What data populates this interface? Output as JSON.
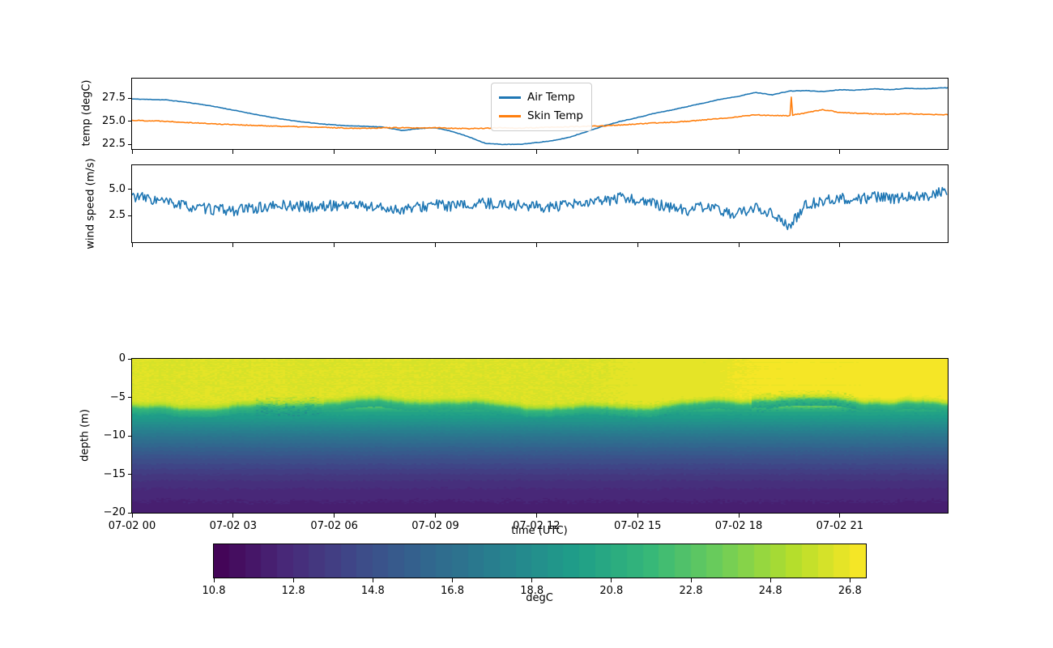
{
  "figure": {
    "background": "#ffffff"
  },
  "time_axis": {
    "lim_hours": [
      0,
      24.2
    ],
    "xlabel": "time (UTC)",
    "ticks": [
      {
        "t": 0,
        "label": "07-02 00"
      },
      {
        "t": 3,
        "label": "07-02 03"
      },
      {
        "t": 6,
        "label": "07-02 06"
      },
      {
        "t": 9,
        "label": "07-02 09"
      },
      {
        "t": 12,
        "label": "07-02 12"
      },
      {
        "t": 15,
        "label": "07-02 15"
      },
      {
        "t": 18,
        "label": "07-02 18"
      },
      {
        "t": 21,
        "label": "07-02 21"
      }
    ]
  },
  "panels": {
    "temp": {
      "ylabel": "temp (degC)",
      "ylim": [
        22.0,
        29.6
      ],
      "yticks": [
        {
          "v": 27.5,
          "label": "27.5"
        },
        {
          "v": 25.0,
          "label": "25.0"
        },
        {
          "v": 22.5,
          "label": "22.5"
        }
      ],
      "legend": [
        {
          "label": "Air Temp",
          "color": "#1f77b4"
        },
        {
          "label": "Skin Temp",
          "color": "#ff7f0e"
        }
      ]
    },
    "wind": {
      "ylabel": "wind speed (m/s)",
      "ylim": [
        0,
        7.3
      ],
      "yticks": [
        {
          "v": 5.0,
          "label": "5.0"
        },
        {
          "v": 2.5,
          "label": "2.5"
        }
      ]
    },
    "depth": {
      "ylabel": "depth (m)",
      "ylim": [
        -20,
        0
      ],
      "yticks": [
        {
          "v": 0,
          "label": "0"
        },
        {
          "v": -5,
          "label": "−5"
        },
        {
          "v": -10,
          "label": "−10"
        },
        {
          "v": -15,
          "label": "−15"
        },
        {
          "v": -20,
          "label": "−20"
        }
      ]
    }
  },
  "colorbar": {
    "label": "degC",
    "lim": [
      10.8,
      27.2
    ],
    "level_step": 0.4,
    "ticks": [
      {
        "v": 10.8,
        "label": "10.8"
      },
      {
        "v": 12.8,
        "label": "12.8"
      },
      {
        "v": 14.8,
        "label": "14.8"
      },
      {
        "v": 16.8,
        "label": "16.8"
      },
      {
        "v": 18.8,
        "label": "18.8"
      },
      {
        "v": 20.8,
        "label": "20.8"
      },
      {
        "v": 22.8,
        "label": "22.8"
      },
      {
        "v": 24.8,
        "label": "24.8"
      },
      {
        "v": 26.8,
        "label": "26.8"
      }
    ]
  },
  "chart_data": [
    {
      "type": "line",
      "name": "Air Temp",
      "units": "degC",
      "color": "#1f77b4",
      "t_start_hours": 0,
      "t_step_hours": 0.5,
      "values": [
        27.4,
        27.35,
        27.3,
        27.1,
        26.85,
        26.55,
        26.2,
        25.85,
        25.5,
        25.2,
        24.95,
        24.75,
        24.6,
        24.5,
        24.45,
        24.35,
        24.0,
        24.2,
        24.3,
        23.9,
        23.3,
        22.6,
        22.5,
        22.5,
        22.7,
        22.9,
        23.3,
        23.9,
        24.5,
        25.0,
        25.4,
        25.85,
        26.2,
        26.6,
        27.0,
        27.4,
        27.7,
        28.1,
        27.85,
        28.25,
        28.3,
        28.2,
        28.4,
        28.35,
        28.5,
        28.4,
        28.55,
        28.5,
        28.6
      ],
      "noise_amp": 0.05
    },
    {
      "type": "line",
      "name": "Skin Temp",
      "units": "degC",
      "color": "#ff7f0e",
      "t_start_hours": 0,
      "t_step_hours": 0.5,
      "values": [
        25.1,
        25.05,
        25.0,
        24.9,
        24.8,
        24.7,
        24.65,
        24.55,
        24.5,
        24.45,
        24.4,
        24.35,
        24.3,
        24.25,
        24.25,
        24.3,
        24.3,
        24.25,
        24.3,
        24.25,
        24.2,
        24.25,
        24.3,
        24.25,
        24.3,
        24.35,
        24.4,
        24.45,
        24.5,
        24.6,
        24.7,
        24.8,
        24.9,
        25.0,
        25.15,
        25.3,
        25.5,
        25.7,
        25.6,
        25.6,
        25.9,
        26.25,
        25.95,
        25.85,
        25.8,
        25.75,
        25.8,
        25.75,
        25.7
      ],
      "spike": {
        "t_hours": 19.55,
        "value": 27.6
      },
      "noise_amp": 0.09
    },
    {
      "type": "line",
      "name": "wind speed",
      "units": "m/s",
      "color": "#1f77b4",
      "t_start_hours": 0,
      "t_step_hours": 0.5,
      "values": [
        4.4,
        4.1,
        3.8,
        3.5,
        3.2,
        3.1,
        3.0,
        3.2,
        3.3,
        3.5,
        3.4,
        3.3,
        3.5,
        3.6,
        3.4,
        3.2,
        3.1,
        3.3,
        3.6,
        3.4,
        3.5,
        3.7,
        3.6,
        3.5,
        3.4,
        3.3,
        3.5,
        3.7,
        3.9,
        4.2,
        4.0,
        3.6,
        3.3,
        3.0,
        3.4,
        2.9,
        2.7,
        3.2,
        2.8,
        1.4,
        3.6,
        3.9,
        4.2,
        4.0,
        4.3,
        4.1,
        4.4,
        4.3,
        4.8
      ],
      "noise_amp": 1.05
    },
    {
      "type": "heatmap",
      "name": "water column temperature",
      "units": "degC",
      "cmap": "viridis",
      "clim": [
        10.8,
        27.2
      ],
      "level_step": 0.4,
      "depth_profile": {
        "depths_m": [
          0,
          1,
          2,
          3,
          4,
          5,
          5.5,
          6,
          6.5,
          7,
          8,
          9,
          10,
          11,
          12,
          13,
          14,
          15,
          16,
          17,
          18,
          19,
          20
        ],
        "temps_degC": [
          26.4,
          26.4,
          26.4,
          26.4,
          26.4,
          26.4,
          26.3,
          24.5,
          21.6,
          20.3,
          19.4,
          18.3,
          17.3,
          16.4,
          15.6,
          14.8,
          14.2,
          13.6,
          13.1,
          12.75,
          12.5,
          12.3,
          12.1
        ]
      },
      "surface_temp_by_hour": [
        26.4,
        26.4,
        26.4,
        26.4,
        26.4,
        26.4,
        26.4,
        26.4,
        26.4,
        26.4,
        26.4,
        26.4,
        26.4,
        26.4,
        26.4,
        26.5,
        26.6,
        26.7,
        26.8,
        26.9,
        27.0,
        27.0,
        27.0,
        27.0,
        27.0
      ],
      "mixed_layer_depth_m": 5.9,
      "viridis_stops": [
        "#440154",
        "#482878",
        "#3e4a89",
        "#31688e",
        "#26828e",
        "#1f9e89",
        "#35b779",
        "#6dcd59",
        "#b4de2c",
        "#fde725"
      ]
    }
  ]
}
